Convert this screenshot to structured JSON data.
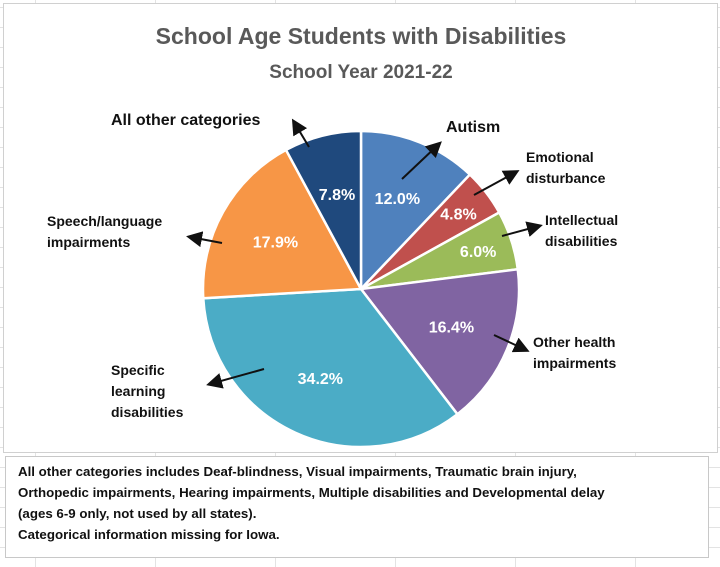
{
  "chart_data": {
    "type": "pie",
    "title": "School Age Students with Disabilities",
    "subtitle": "School Year 2021-22",
    "start_angle": "12 o'clock",
    "direction": "clockwise",
    "slices": [
      {
        "label": "Autism",
        "value": 12.0,
        "value_label": "12.0%",
        "color": "#4f81bd"
      },
      {
        "label": "Emotional disturbance",
        "value": 4.8,
        "value_label": "4.8%",
        "color": "#c0504d"
      },
      {
        "label": "Intellectual disabilities",
        "value": 6.0,
        "value_label": "6.0%",
        "color": "#9bbb59"
      },
      {
        "label": "Other health impairments",
        "value": 16.4,
        "value_label": "16.4%",
        "color": "#8064a2"
      },
      {
        "label": "Specific learning disabilities",
        "value": 34.2,
        "value_label": "34.2%",
        "color": "#4bacc6"
      },
      {
        "label": "Speech/language impairments",
        "value": 17.9,
        "value_label": "17.9%",
        "color": "#f79646"
      },
      {
        "label": "All other categories",
        "value": 7.8,
        "value_label": "7.8%",
        "color": "#1f497d"
      }
    ],
    "label_lines": [
      [
        "Autism"
      ],
      [
        "Emotional",
        "disturbance"
      ],
      [
        "Intellectual",
        "disabilities"
      ],
      [
        "Other health",
        "impairments"
      ],
      [
        "Specific",
        "learning",
        "disabilities"
      ],
      [
        "Speech/language",
        "impairments"
      ],
      [
        "All other categories"
      ]
    ]
  },
  "footnote": {
    "lines": [
      "All other categories includes Deaf-blindness, Visual impairments, Traumatic brain injury,",
      "Orthopedic impairments, Hearing impairments, Multiple disabilities and Developmental delay",
      "(ages 6-9 only, not used by all states).",
      "Categorical information missing for Iowa."
    ]
  }
}
